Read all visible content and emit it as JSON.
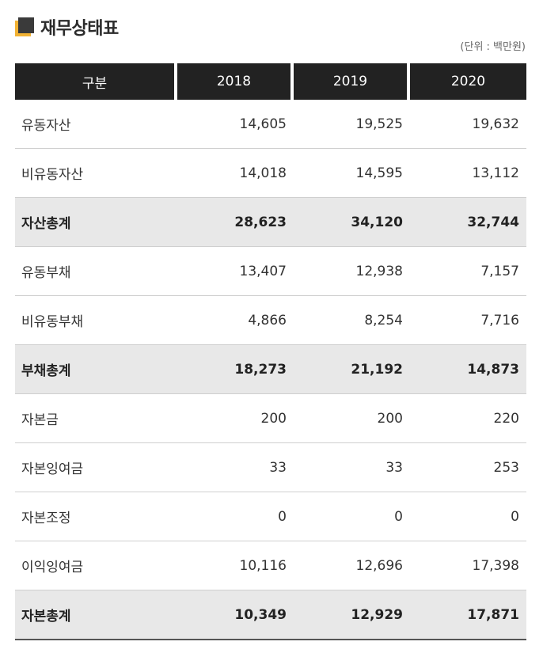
{
  "title": "재무상태표",
  "unit_note": "(단위 : 백만원)",
  "colors": {
    "accent": "#f2b233",
    "header_bg": "#222222",
    "total_row_bg": "#e8e8e8"
  },
  "table": {
    "headers": [
      "구분",
      "2018",
      "2019",
      "2020"
    ],
    "rows": [
      {
        "label": "유동자산",
        "values": [
          "14,605",
          "19,525",
          "19,632"
        ],
        "total": false
      },
      {
        "label": "비유동자산",
        "values": [
          "14,018",
          "14,595",
          "13,112"
        ],
        "total": false
      },
      {
        "label": "자산총계",
        "values": [
          "28,623",
          "34,120",
          "32,744"
        ],
        "total": true
      },
      {
        "label": "유동부채",
        "values": [
          "13,407",
          "12,938",
          "7,157"
        ],
        "total": false
      },
      {
        "label": "비유동부채",
        "values": [
          "4,866",
          "8,254",
          "7,716"
        ],
        "total": false
      },
      {
        "label": "부채총계",
        "values": [
          "18,273",
          "21,192",
          "14,873"
        ],
        "total": true
      },
      {
        "label": "자본금",
        "values": [
          "200",
          "200",
          "220"
        ],
        "total": false
      },
      {
        "label": "자본잉여금",
        "values": [
          "33",
          "33",
          "253"
        ],
        "total": false
      },
      {
        "label": "자본조정",
        "values": [
          "0",
          "0",
          "0"
        ],
        "total": false
      },
      {
        "label": "이익잉여금",
        "values": [
          "10,116",
          "12,696",
          "17,398"
        ],
        "total": false
      },
      {
        "label": "자본총계",
        "values": [
          "10,349",
          "12,929",
          "17,871"
        ],
        "total": true
      }
    ]
  }
}
